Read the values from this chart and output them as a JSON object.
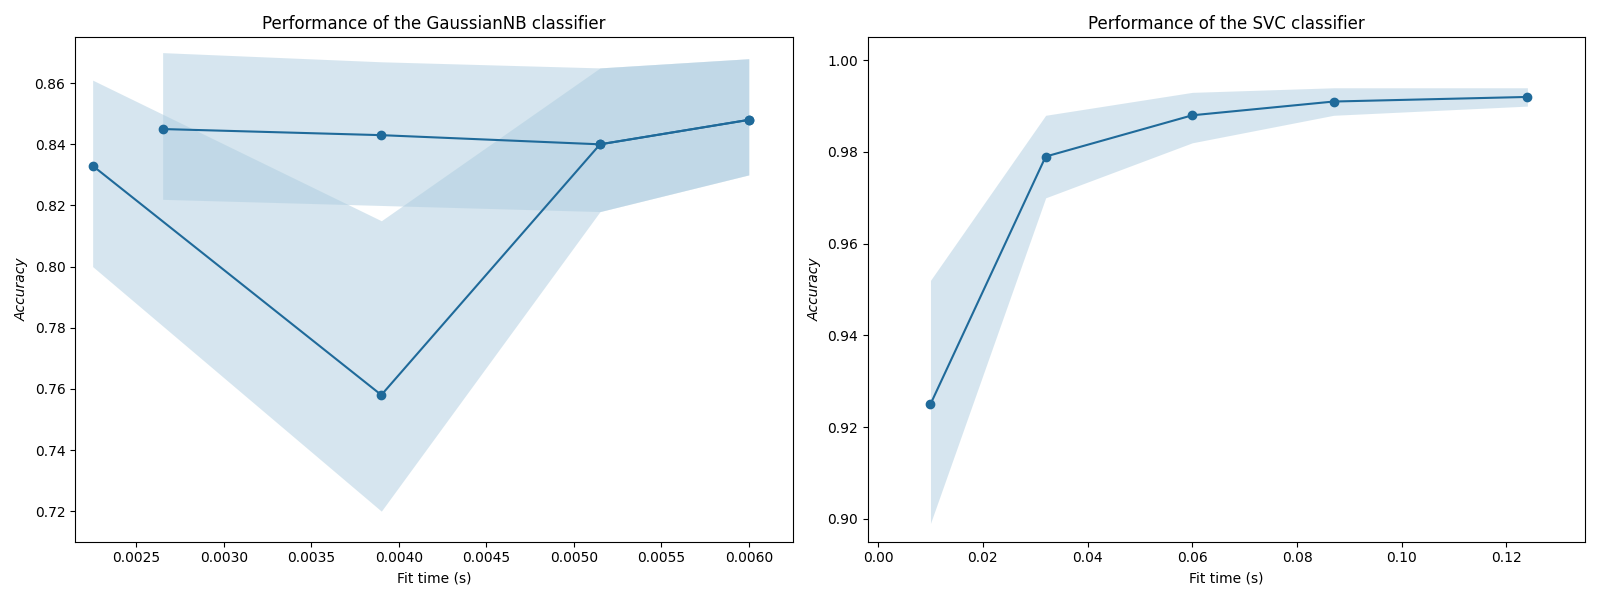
{
  "gnb": {
    "title": "Performance of the GaussianNB classifier",
    "xlabel": "Fit time (s)",
    "ylabel": "Accuracy",
    "line1_x": [
      0.00225,
      0.0039,
      0.00515,
      0.006
    ],
    "line1_y": [
      0.833,
      0.758,
      0.84,
      0.848
    ],
    "line1_upper": [
      0.861,
      0.815,
      0.865,
      0.868
    ],
    "line1_lower": [
      0.8,
      0.72,
      0.818,
      0.83
    ],
    "line2_x": [
      0.00265,
      0.0039,
      0.00515,
      0.006
    ],
    "line2_y": [
      0.845,
      0.843,
      0.84,
      0.848
    ],
    "line2_upper": [
      0.87,
      0.867,
      0.865,
      0.868
    ],
    "line2_lower": [
      0.822,
      0.82,
      0.818,
      0.83
    ],
    "ylim": [
      0.71,
      0.875
    ],
    "xlim": [
      0.00215,
      0.00625
    ]
  },
  "svc": {
    "title": "Performance of the SVC classifier",
    "xlabel": "Fit time (s)",
    "ylabel": "Accuracy",
    "line_x": [
      0.01,
      0.032,
      0.06,
      0.087,
      0.124
    ],
    "line_y": [
      0.925,
      0.979,
      0.988,
      0.991,
      0.992
    ],
    "upper": [
      0.952,
      0.988,
      0.993,
      0.994,
      0.994
    ],
    "lower": [
      0.899,
      0.97,
      0.982,
      0.988,
      0.99
    ],
    "ylim": [
      0.895,
      1.005
    ],
    "xlim": [
      -0.002,
      0.135
    ]
  },
  "line_color": "#1f6a9a",
  "fill_color": "#aecde0",
  "fill_alpha": 0.5,
  "line_width": 1.5,
  "marker": "o",
  "marker_size": 6
}
